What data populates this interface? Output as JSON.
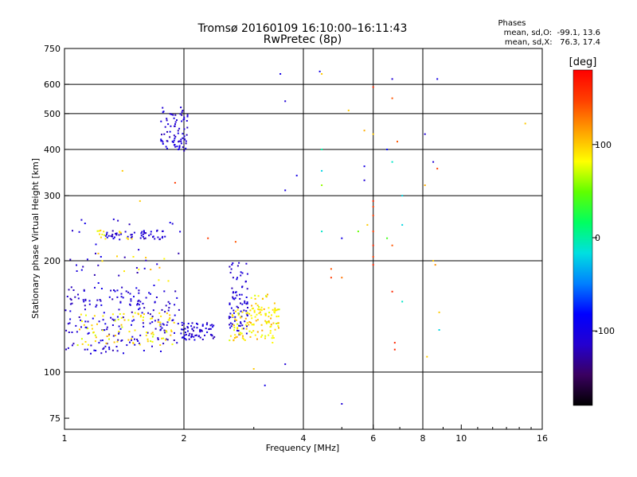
{
  "chart_data": {
    "type": "scatter",
    "title": "Tromsø 20160109 16:10:00–16:11:43",
    "subtitle": "RwPretec (8p)",
    "xlabel": "Frequency [MHz]",
    "ylabel": "Stationary phase Virtual Height [km]",
    "x_scale": "log",
    "y_scale": "log",
    "xlim": [
      1,
      16
    ],
    "ylim": [
      70,
      750
    ],
    "x_ticks": [
      1,
      2,
      4,
      6,
      8,
      10,
      16
    ],
    "y_ticks": [
      75,
      100,
      200,
      300,
      400,
      500,
      600,
      750
    ],
    "x_gridlines": [
      2,
      4,
      6,
      8
    ],
    "y_gridlines": [
      100,
      200,
      300,
      400,
      500,
      600
    ],
    "grid": true,
    "stats": {
      "header": "Phases",
      "line1": "mean, sd,O:  -99.1, 13.6",
      "line2": "mean, sd,X:   76.3, 17.4"
    },
    "colorbar": {
      "label": "[deg]",
      "range": [
        -180,
        180
      ],
      "ticks": [
        100,
        0,
        -100
      ],
      "colors": [
        "#000000",
        "#3a0060",
        "#2400d0",
        "#0000ff",
        "#0080ff",
        "#00e0e0",
        "#00ff60",
        "#60ff00",
        "#ffff00",
        "#ffa000",
        "#ff4000",
        "#ff0000"
      ]
    },
    "clusters": [
      {
        "n": 200,
        "x": [
          1.0,
          1.95
        ],
        "y": [
          112,
          170
        ],
        "phase": [
          -125,
          -95
        ]
      },
      {
        "n": 90,
        "x": [
          1.05,
          1.9
        ],
        "y": [
          118,
          145
        ],
        "phase": [
          70,
          110
        ]
      },
      {
        "n": 80,
        "x": [
          1.75,
          2.05
        ],
        "y": [
          395,
          520
        ],
        "phase": [
          -125,
          -95
        ]
      },
      {
        "n": 50,
        "x": [
          1.25,
          1.8
        ],
        "y": [
          228,
          242
        ],
        "phase": [
          -125,
          -95
        ]
      },
      {
        "n": 15,
        "x": [
          1.2,
          1.5
        ],
        "y": [
          228,
          242
        ],
        "phase": [
          70,
          110
        ]
      },
      {
        "n": 70,
        "x": [
          1.95,
          2.4
        ],
        "y": [
          122,
          136
        ],
        "phase": [
          -125,
          -95
        ]
      },
      {
        "n": 80,
        "x": [
          2.6,
          2.9
        ],
        "y": [
          125,
          200
        ],
        "phase": [
          -125,
          -95
        ]
      },
      {
        "n": 110,
        "x": [
          2.6,
          3.5
        ],
        "y": [
          120,
          150
        ],
        "phase": [
          70,
          115
        ]
      },
      {
        "n": 30,
        "x": [
          2.95,
          3.5
        ],
        "y": [
          140,
          165
        ],
        "phase": [
          70,
          110
        ]
      },
      {
        "n": 40,
        "x": [
          1.0,
          2.0
        ],
        "y": [
          150,
          260
        ],
        "phase": [
          -125,
          -95
        ]
      },
      {
        "n": 12,
        "x": [
          1.2,
          2.0
        ],
        "y": [
          170,
          210
        ],
        "phase": [
          80,
          110
        ]
      }
    ],
    "points": [
      {
        "x": 3.5,
        "y": 640,
        "phase": -100
      },
      {
        "x": 3.6,
        "y": 540,
        "phase": -110
      },
      {
        "x": 3.6,
        "y": 310,
        "phase": -105
      },
      {
        "x": 3.85,
        "y": 340,
        "phase": -100
      },
      {
        "x": 4.4,
        "y": 650,
        "phase": -100
      },
      {
        "x": 4.45,
        "y": 640,
        "phase": 100
      },
      {
        "x": 4.45,
        "y": 400,
        "phase": 0
      },
      {
        "x": 4.45,
        "y": 350,
        "phase": -20
      },
      {
        "x": 4.45,
        "y": 320,
        "phase": 60
      },
      {
        "x": 4.45,
        "y": 240,
        "phase": -10
      },
      {
        "x": 4.7,
        "y": 190,
        "phase": 140
      },
      {
        "x": 4.7,
        "y": 180,
        "phase": 150
      },
      {
        "x": 5.0,
        "y": 230,
        "phase": -100
      },
      {
        "x": 5.0,
        "y": 180,
        "phase": 130
      },
      {
        "x": 5.0,
        "y": 82,
        "phase": -110
      },
      {
        "x": 5.2,
        "y": 510,
        "phase": 100
      },
      {
        "x": 5.5,
        "y": 240,
        "phase": 50
      },
      {
        "x": 5.7,
        "y": 450,
        "phase": 110
      },
      {
        "x": 5.7,
        "y": 360,
        "phase": -100
      },
      {
        "x": 5.7,
        "y": 330,
        "phase": -110
      },
      {
        "x": 5.8,
        "y": 250,
        "phase": 100
      },
      {
        "x": 6.0,
        "y": 590,
        "phase": 160
      },
      {
        "x": 6.0,
        "y": 440,
        "phase": 100
      },
      {
        "x": 6.0,
        "y": 290,
        "phase": 160
      },
      {
        "x": 6.0,
        "y": 280,
        "phase": 150
      },
      {
        "x": 6.0,
        "y": 265,
        "phase": 150
      },
      {
        "x": 6.0,
        "y": 240,
        "phase": 150
      },
      {
        "x": 6.0,
        "y": 220,
        "phase": 160
      },
      {
        "x": 6.0,
        "y": 205,
        "phase": 150
      },
      {
        "x": 6.0,
        "y": 195,
        "phase": 160
      },
      {
        "x": 6.5,
        "y": 400,
        "phase": -80
      },
      {
        "x": 6.5,
        "y": 230,
        "phase": 40
      },
      {
        "x": 6.7,
        "y": 620,
        "phase": -110
      },
      {
        "x": 6.7,
        "y": 550,
        "phase": 140
      },
      {
        "x": 6.7,
        "y": 370,
        "phase": -10
      },
      {
        "x": 6.7,
        "y": 220,
        "phase": 140
      },
      {
        "x": 6.7,
        "y": 165,
        "phase": 160
      },
      {
        "x": 6.8,
        "y": 120,
        "phase": 160
      },
      {
        "x": 6.8,
        "y": 115,
        "phase": 160
      },
      {
        "x": 6.9,
        "y": 420,
        "phase": 140
      },
      {
        "x": 7.1,
        "y": 300,
        "phase": -20
      },
      {
        "x": 7.1,
        "y": 250,
        "phase": -20
      },
      {
        "x": 7.1,
        "y": 155,
        "phase": -10
      },
      {
        "x": 8.1,
        "y": 440,
        "phase": -110
      },
      {
        "x": 8.1,
        "y": 320,
        "phase": 110
      },
      {
        "x": 8.2,
        "y": 110,
        "phase": 100
      },
      {
        "x": 8.5,
        "y": 370,
        "phase": -110
      },
      {
        "x": 8.5,
        "y": 200,
        "phase": 100
      },
      {
        "x": 8.6,
        "y": 195,
        "phase": 120
      },
      {
        "x": 8.7,
        "y": 620,
        "phase": -100
      },
      {
        "x": 8.7,
        "y": 355,
        "phase": 150
      },
      {
        "x": 8.8,
        "y": 145,
        "phase": 100
      },
      {
        "x": 8.8,
        "y": 130,
        "phase": -20
      },
      {
        "x": 14.5,
        "y": 470,
        "phase": 100
      },
      {
        "x": 3.2,
        "y": 92,
        "phase": -100
      },
      {
        "x": 3.6,
        "y": 105,
        "phase": -110
      },
      {
        "x": 3.0,
        "y": 102,
        "phase": 100
      },
      {
        "x": 2.3,
        "y": 230,
        "phase": 150
      },
      {
        "x": 2.7,
        "y": 225,
        "phase": 140
      },
      {
        "x": 1.9,
        "y": 325,
        "phase": 150
      },
      {
        "x": 1.4,
        "y": 350,
        "phase": 100
      },
      {
        "x": 1.55,
        "y": 290,
        "phase": 100
      }
    ]
  }
}
